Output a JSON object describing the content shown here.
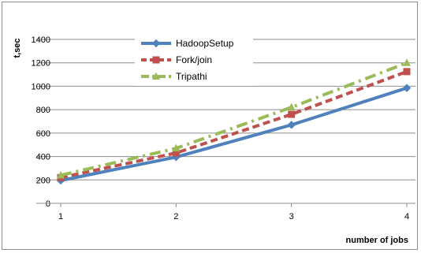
{
  "chart_data": {
    "type": "line",
    "x": [
      1,
      2,
      3,
      4
    ],
    "series": [
      {
        "name": "HadoopSetup",
        "values": [
          195,
          395,
          670,
          985
        ],
        "color": "#4f81bd",
        "marker": "diamond",
        "dash": "solid"
      },
      {
        "name": "Fork/join",
        "values": [
          220,
          430,
          760,
          1125
        ],
        "color": "#c0504d",
        "marker": "square",
        "dash": "dashed"
      },
      {
        "name": "Tripathi",
        "values": [
          240,
          470,
          820,
          1200
        ],
        "color": "#9bbb59",
        "marker": "triangle",
        "dash": "dash-dot"
      }
    ],
    "xlabel": "number of jobs",
    "ylabel": "t,sec",
    "ylim": [
      0,
      1400
    ],
    "yticks": [
      0,
      200,
      400,
      600,
      800,
      1000,
      1200,
      1400
    ],
    "xticks": [
      1,
      2,
      3,
      4
    ],
    "grid": "horizontal",
    "legend": "top-center"
  }
}
